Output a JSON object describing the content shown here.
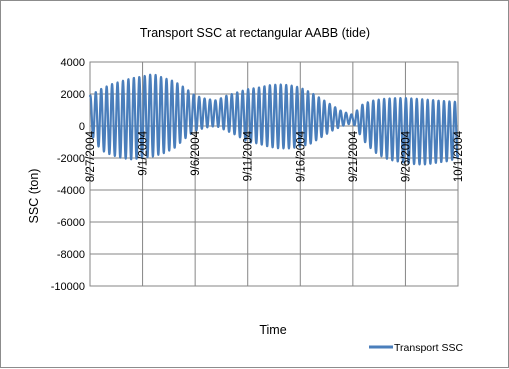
{
  "chart_data": {
    "type": "line",
    "title": "Transport SSC at rectangular AABB (tide)",
    "xlabel": "Time",
    "ylabel": "SSC (ton)",
    "ylim": [
      -10000,
      4000
    ],
    "ytick_step": 2000,
    "ytick_labels": [
      "4000",
      "2000",
      "0",
      "-2000",
      "-4000",
      "-6000",
      "-8000",
      "-10000"
    ],
    "x_start": "8/27/2004",
    "x_end": "10/1/2004",
    "x_tick_labels": [
      "8/27/2004",
      "9/1/2004",
      "9/6/2004",
      "9/11/2004",
      "9/16/2004",
      "9/21/2004",
      "9/26/2004",
      "10/1/2004"
    ],
    "grid": true,
    "legend_position": "bottom-right",
    "series": [
      {
        "name": "Transport SSC",
        "color": "#4a7ebb",
        "period_days": 0.5175,
        "envelope_days": [
          0,
          1,
          2,
          3,
          4,
          5,
          6,
          7,
          8,
          9,
          10,
          11,
          12,
          13,
          14,
          15,
          16,
          17,
          18,
          19,
          20,
          21,
          22,
          23,
          24,
          25,
          26,
          27,
          28,
          29,
          30,
          31,
          32,
          33,
          34,
          35
        ],
        "upper_envelope": [
          1900,
          2300,
          2600,
          2800,
          3000,
          3100,
          3250,
          3000,
          2800,
          2400,
          1900,
          1700,
          1600,
          1900,
          2100,
          2300,
          2400,
          2550,
          2600,
          2550,
          2400,
          2100,
          1700,
          1300,
          900,
          700,
          1400,
          1600,
          1700,
          1750,
          1750,
          1700,
          1650,
          1600,
          1550,
          1500
        ],
        "lower_envelope": [
          -400,
          -1500,
          -1800,
          -2000,
          -2100,
          -2000,
          -1900,
          -1700,
          -1400,
          -800,
          -300,
          -100,
          0,
          -300,
          -600,
          -1000,
          -1100,
          -1300,
          -1400,
          -1400,
          -1300,
          -1100,
          -700,
          -300,
          0,
          200,
          -900,
          -1600,
          -2000,
          -2200,
          -2300,
          -2400,
          -2400,
          -2300,
          -2200,
          -2000
        ]
      }
    ]
  }
}
